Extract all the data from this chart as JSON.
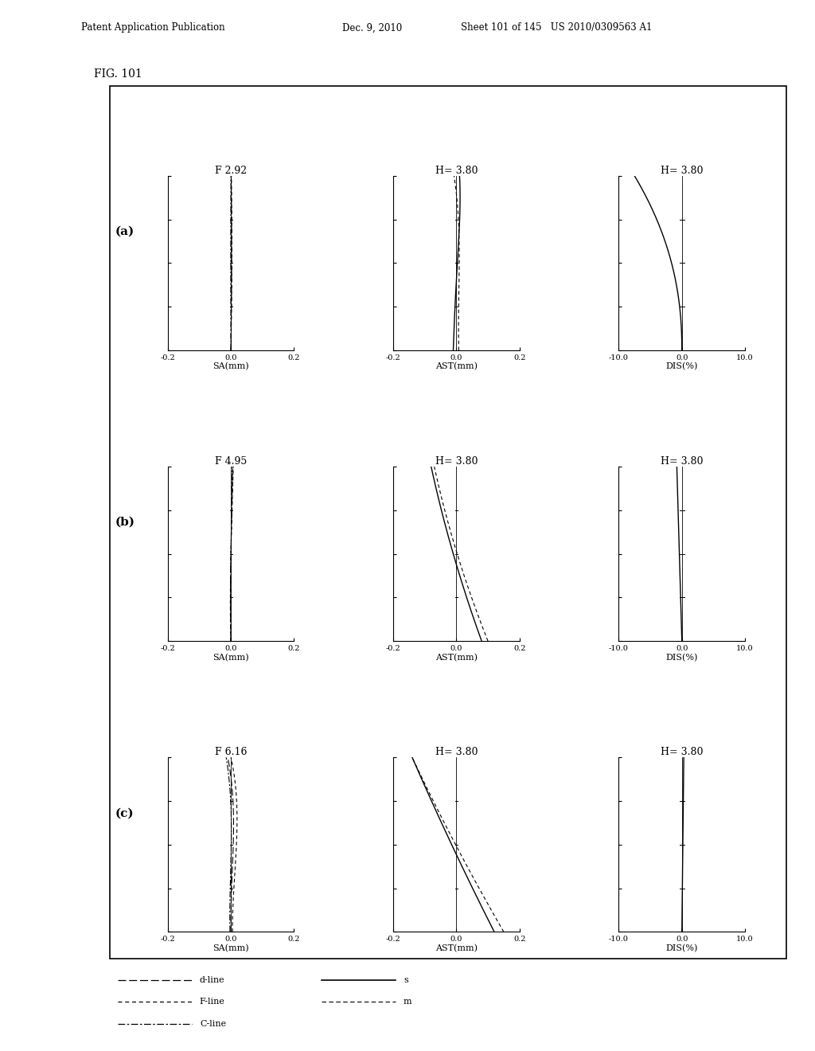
{
  "title": "FIG. 101",
  "header_left": "Patent Application Publication",
  "header_mid": "Dec. 9, 2010",
  "header_right": "Sheet 101 of 145   US 2010/0309563 A1",
  "rows": [
    "(a)",
    "(b)",
    "(c)"
  ],
  "sa_titles": [
    "F 2.92",
    "F 4.95",
    "F 6.16"
  ],
  "ast_titles": [
    "H= 3.80",
    "H= 3.80",
    "H= 3.80"
  ],
  "dis_titles": [
    "H= 3.80",
    "H= 3.80",
    "H= 3.80"
  ],
  "sa_xlabel": "SA(mm)",
  "ast_xlabel": "AST(mm)",
  "dis_xlabel": "DIS(%)",
  "sa_xlim": [
    -0.2,
    0.2
  ],
  "ast_xlim": [
    -0.2,
    0.2
  ],
  "dis_xlim": [
    -10.0,
    10.0
  ],
  "sa_xticks": [
    -0.2,
    0.0,
    0.2
  ],
  "ast_xticks": [
    -0.2,
    0.0,
    0.2
  ],
  "dis_xticks": [
    -10.0,
    0.0,
    10.0
  ],
  "ylim": [
    0.0,
    1.0
  ],
  "ytick_count": 5,
  "background": "#ffffff"
}
